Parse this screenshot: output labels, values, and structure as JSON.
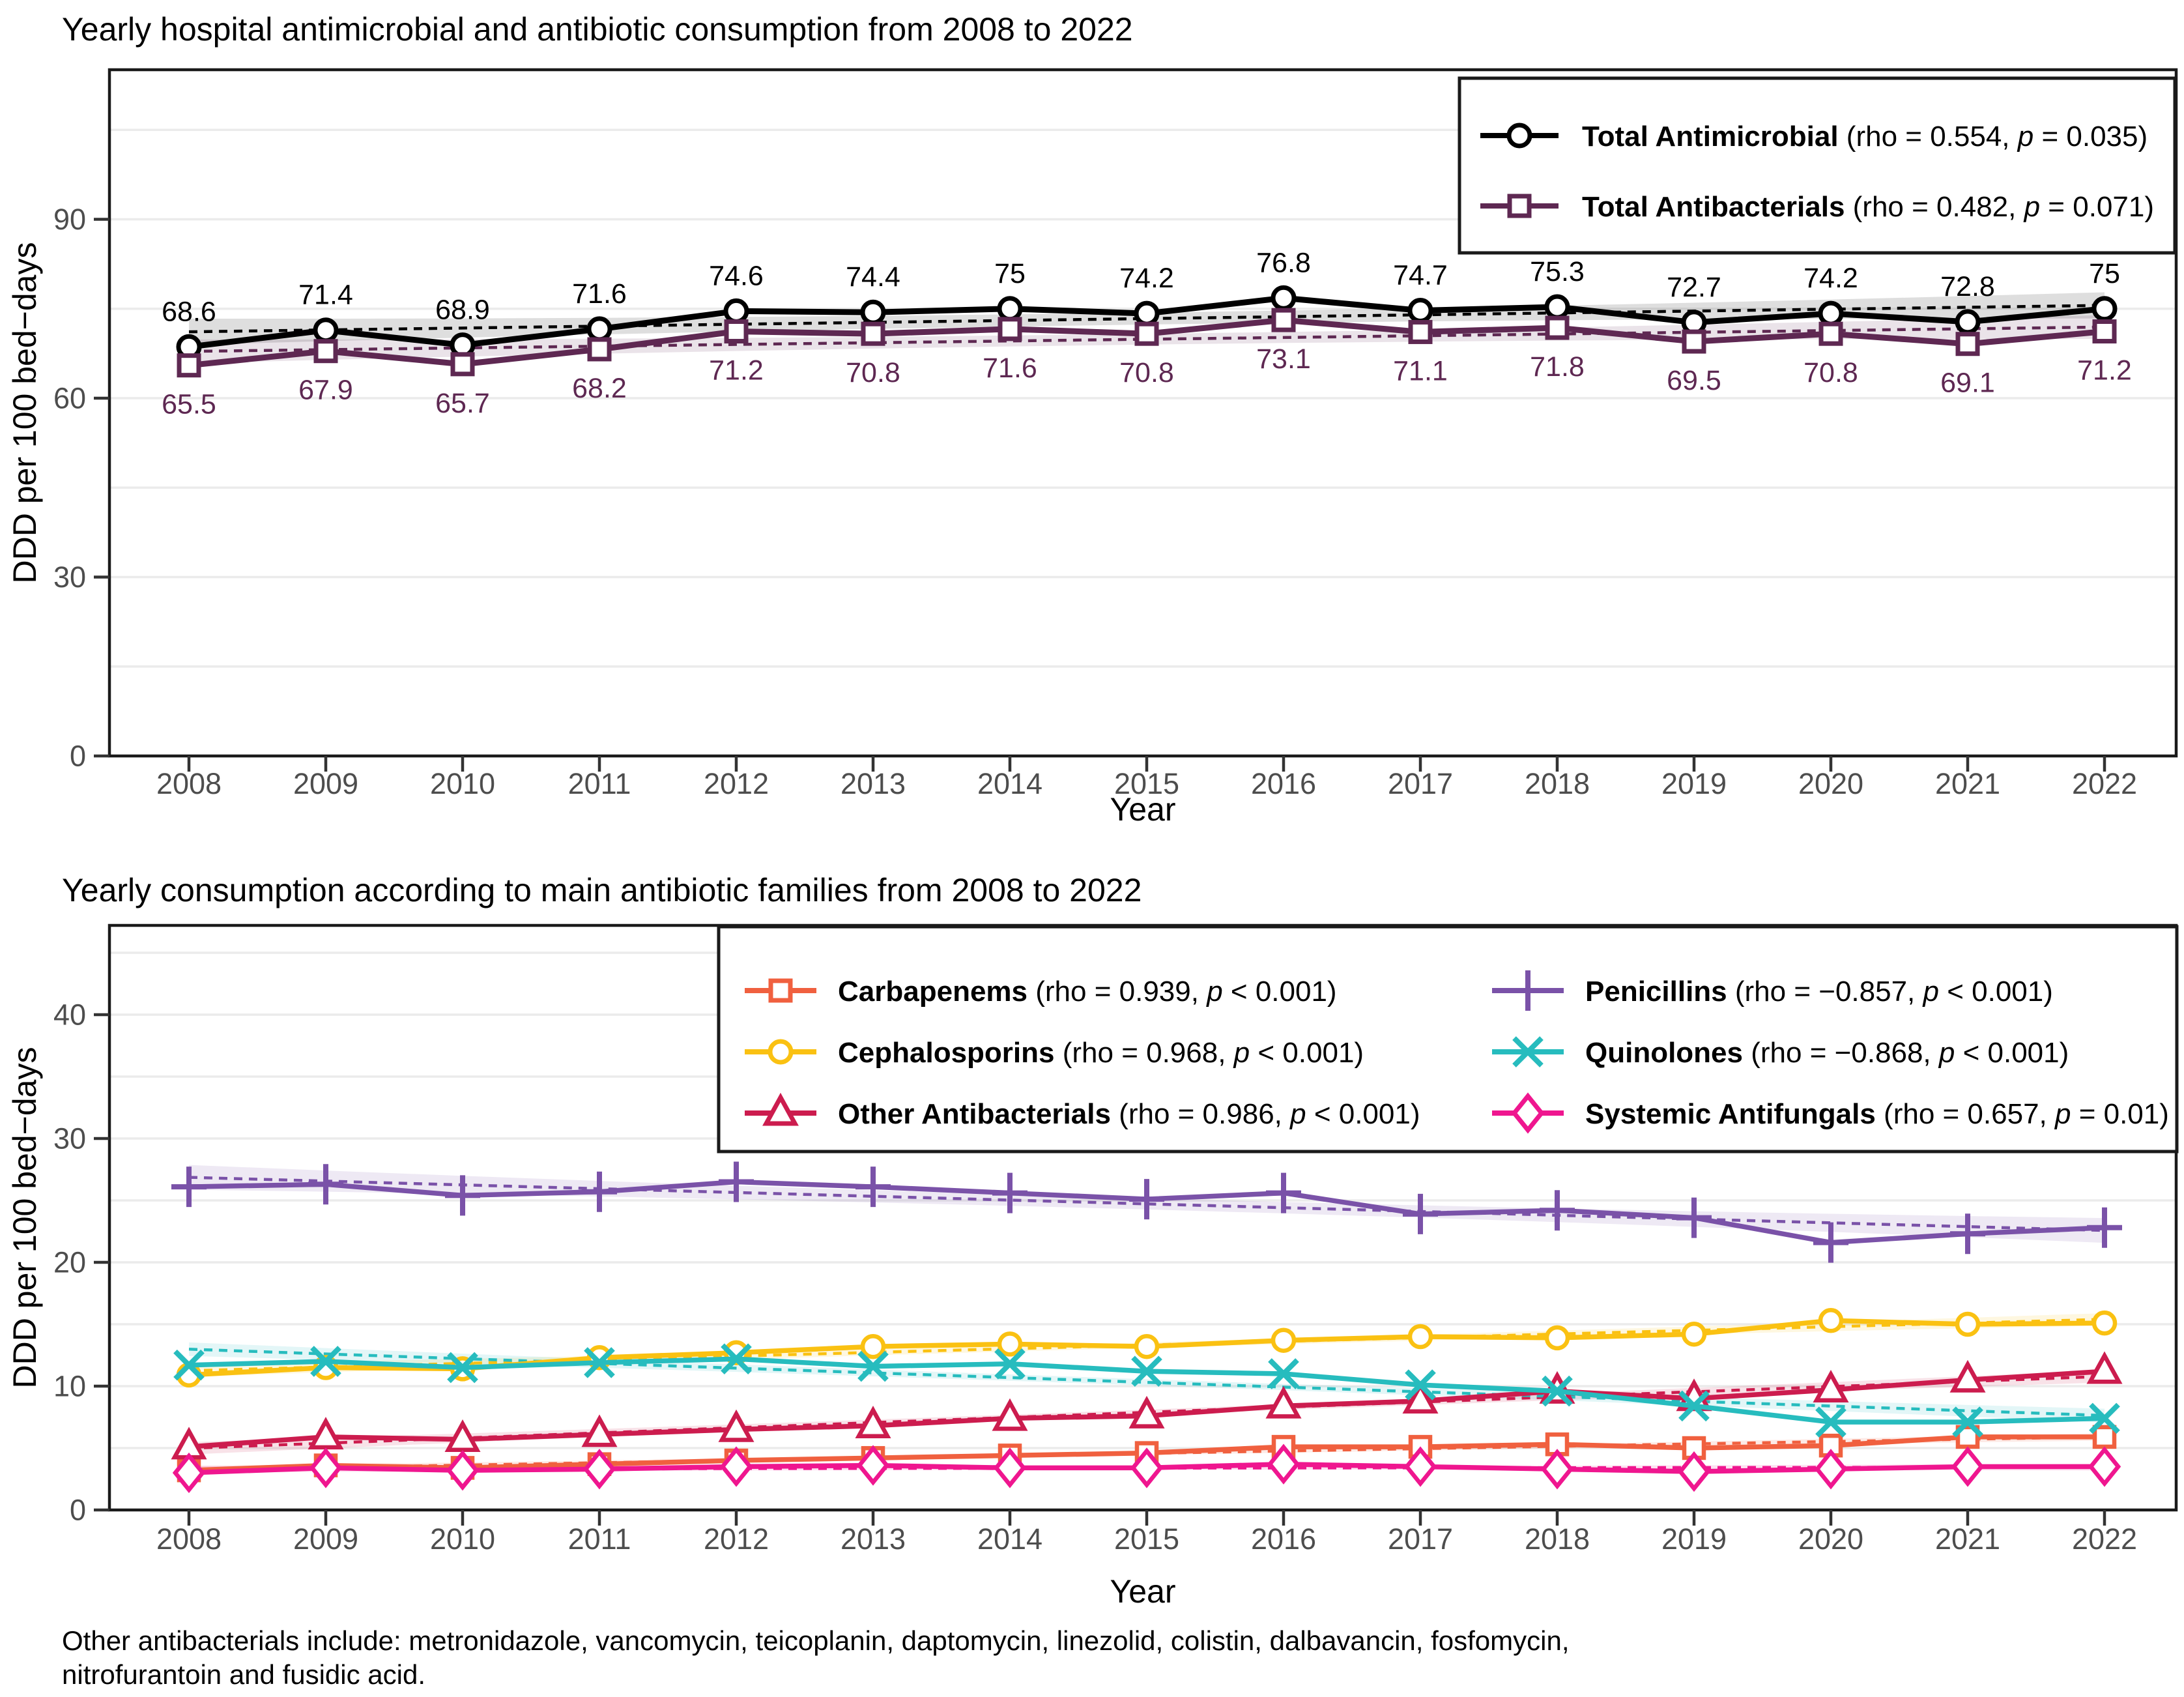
{
  "figure": {
    "background": "#ffffff",
    "axis_text_color": "#4d4d4d",
    "grid_color": "#ebebeb",
    "border_color": "#1a1a1a",
    "tick_color": "#333333",
    "text_color": "#000000"
  },
  "footnote": {
    "line1": "Other antibacterials include: metronidazole, vancomycin, teicoplanin, daptomycin, linezolid, colistin, dalbavancin, fosfomycin,",
    "line2": "nitrofurantoin and fusidic acid."
  },
  "chart_data": [
    {
      "type": "line",
      "title": "Yearly hospital antimicrobial and antibiotic consumption from 2008 to 2022",
      "xlabel": "Year",
      "ylabel": "DDD per 100 bed−days",
      "x": [
        2008,
        2009,
        2010,
        2011,
        2012,
        2013,
        2014,
        2015,
        2016,
        2017,
        2018,
        2019,
        2020,
        2021,
        2022
      ],
      "ylim": [
        0,
        115
      ],
      "yticks": [
        0,
        30,
        60,
        90
      ],
      "grid_lines": [
        15,
        30,
        45,
        60,
        75,
        90,
        105
      ],
      "grid": true,
      "legend_position": "top-right",
      "legend_columns": 1,
      "series": [
        {
          "name": "Total Antimicrobial",
          "slug": "total-antimicrobial",
          "legend_pre": " (rho = 0.554, ",
          "legend_p": "p",
          "legend_post": " = 0.035)",
          "color": "#000000",
          "marker": "circle",
          "values": [
            68.6,
            71.4,
            68.9,
            71.6,
            74.6,
            74.4,
            75,
            74.2,
            76.8,
            74.7,
            75.3,
            72.7,
            74.2,
            72.8,
            75
          ],
          "labels": [
            "68.6",
            "71.4",
            "68.9",
            "71.6",
            "74.6",
            "74.4",
            "75",
            "74.2",
            "76.8",
            "74.7",
            "75.3",
            "72.7",
            "74.2",
            "72.8",
            "75"
          ],
          "label_position": "above",
          "ribbon": [
            2.2,
            1.0
          ]
        },
        {
          "name": "Total Antibacterials",
          "slug": "total-antibacterials",
          "legend_pre": " (rho = 0.482, ",
          "legend_p": "p",
          "legend_post": " = 0.071)",
          "color": "#5E2852",
          "marker": "square",
          "values": [
            65.5,
            67.9,
            65.7,
            68.2,
            71.2,
            70.8,
            71.6,
            70.8,
            73.1,
            71.1,
            71.8,
            69.5,
            70.8,
            69.1,
            71.2
          ],
          "labels": [
            "65.5",
            "67.9",
            "65.7",
            "68.2",
            "71.2",
            "70.8",
            "71.6",
            "70.8",
            "73.1",
            "71.1",
            "71.8",
            "69.5",
            "70.8",
            "69.1",
            "71.2"
          ],
          "label_position": "below",
          "ribbon": [
            2.0,
            0.9
          ]
        }
      ]
    },
    {
      "type": "line",
      "title": "Yearly consumption according to main antibiotic families from 2008 to 2022",
      "xlabel": "Year",
      "ylabel": "DDD per 100 bed−days",
      "x": [
        2008,
        2009,
        2010,
        2011,
        2012,
        2013,
        2014,
        2015,
        2016,
        2017,
        2018,
        2019,
        2020,
        2021,
        2022
      ],
      "ylim": [
        0,
        47
      ],
      "yticks": [
        0,
        10,
        20,
        30,
        40
      ],
      "grid_lines": [
        5,
        10,
        15,
        20,
        25,
        30,
        35,
        40,
        45
      ],
      "grid": true,
      "legend_position": "top-right-inside",
      "legend_columns": 2,
      "series": [
        {
          "name": "Carbapenems",
          "slug": "carbapenems",
          "legend_pre": " (rho = 0.939, ",
          "legend_p": "p",
          "legend_post": " < 0.001)",
          "color": "#F0603F",
          "marker": "square",
          "values": [
            3.2,
            3.6,
            3.4,
            3.7,
            4.0,
            4.2,
            4.4,
            4.6,
            5.1,
            5.1,
            5.3,
            5.0,
            5.2,
            5.9,
            5.9
          ],
          "labels": null,
          "label_position": "none",
          "ribbon": [
            0.3,
            0.14
          ]
        },
        {
          "name": "Cephalosporins",
          "slug": "cephalosporins",
          "legend_pre": " (rho = 0.968, ",
          "legend_p": "p",
          "legend_post": " < 0.001)",
          "color": "#FAC112",
          "marker": "circle",
          "values": [
            10.9,
            11.5,
            11.4,
            12.3,
            12.7,
            13.2,
            13.4,
            13.2,
            13.7,
            14.0,
            13.9,
            14.2,
            15.3,
            15.0,
            15.1
          ],
          "labels": null,
          "label_position": "none",
          "ribbon": [
            0.5,
            0.22
          ]
        },
        {
          "name": "Other Antibacterials",
          "slug": "other-antibacterials",
          "legend_pre": " (rho = 0.986, ",
          "legend_p": "p",
          "legend_post": " < 0.001)",
          "color": "#CC1C4E",
          "marker": "triangle",
          "values": [
            5.1,
            5.9,
            5.7,
            6.1,
            6.5,
            6.8,
            7.4,
            7.6,
            8.4,
            8.8,
            9.6,
            9.0,
            9.7,
            10.5,
            11.2
          ],
          "labels": null,
          "label_position": "none",
          "ribbon": [
            0.5,
            0.22
          ]
        },
        {
          "name": "Penicillins",
          "slug": "penicillins",
          "legend_pre": " (rho = −0.857, ",
          "legend_p": "p",
          "legend_post": " < 0.001)",
          "color": "#7A52A8",
          "marker": "plus",
          "values": [
            26.1,
            26.3,
            25.4,
            25.7,
            26.5,
            26.1,
            25.6,
            25.1,
            25.6,
            23.9,
            24.2,
            23.6,
            21.6,
            22.3,
            22.8
          ],
          "labels": null,
          "label_position": "none",
          "ribbon": [
            1.0,
            0.45
          ]
        },
        {
          "name": "Quinolones",
          "slug": "quinolones",
          "legend_pre": " (rho = −0.868, ",
          "legend_p": "p",
          "legend_post": " < 0.001)",
          "color": "#27BCBE",
          "marker": "x",
          "values": [
            11.7,
            12.0,
            11.5,
            11.9,
            12.2,
            11.6,
            11.8,
            11.2,
            11.0,
            10.1,
            9.6,
            8.4,
            7.1,
            7.1,
            7.4
          ],
          "labels": null,
          "label_position": "none",
          "ribbon": [
            0.55,
            0.25
          ]
        },
        {
          "name": "Systemic Antifungals",
          "slug": "systemic-antifungals",
          "legend_pre": " (rho = 0.657, ",
          "legend_p": "p",
          "legend_post": " = 0.01)",
          "color": "#EF168F",
          "marker": "diamond",
          "values": [
            3.0,
            3.4,
            3.2,
            3.3,
            3.5,
            3.6,
            3.4,
            3.4,
            3.7,
            3.5,
            3.3,
            3.1,
            3.3,
            3.5,
            3.5
          ],
          "labels": null,
          "label_position": "none",
          "ribbon": [
            0.28,
            0.13
          ]
        }
      ]
    }
  ]
}
